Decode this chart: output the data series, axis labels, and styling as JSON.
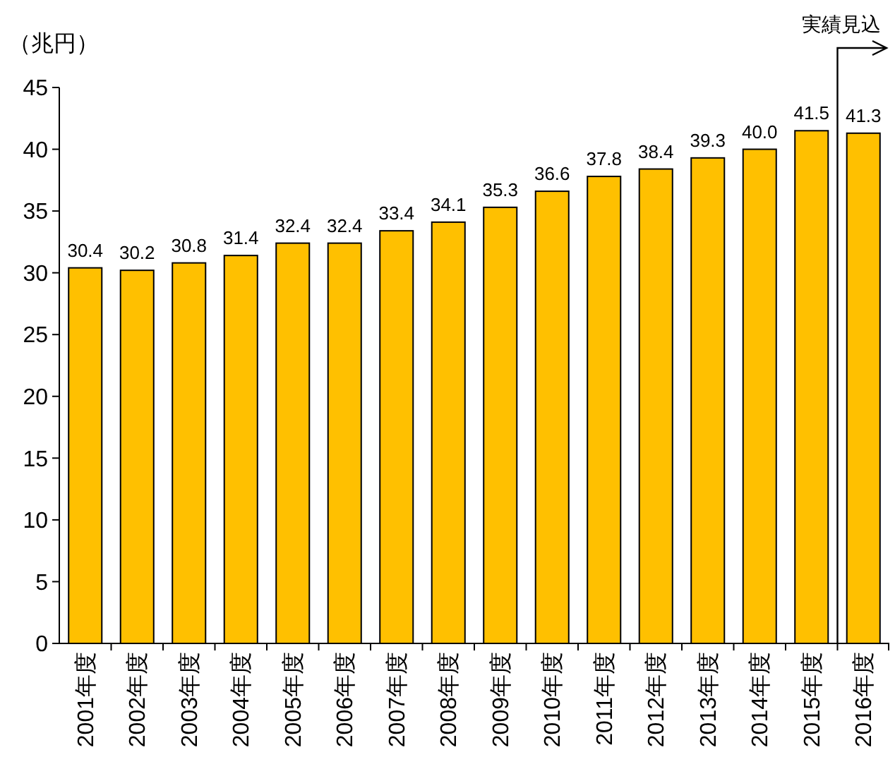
{
  "chart_data": {
    "type": "bar",
    "ylabel": "（兆円）",
    "categories": [
      "2001年度",
      "2002年度",
      "2003年度",
      "2004年度",
      "2005年度",
      "2006年度",
      "2007年度",
      "2008年度",
      "2009年度",
      "2010年度",
      "2011年度",
      "2012年度",
      "2013年度",
      "2014年度",
      "2015年度",
      "2016年度"
    ],
    "values": [
      30.4,
      30.2,
      30.8,
      31.4,
      32.4,
      32.4,
      33.4,
      34.1,
      35.3,
      36.6,
      37.8,
      38.4,
      39.3,
      40.0,
      41.5,
      41.3
    ],
    "value_labels": [
      "30.4",
      "30.2",
      "30.8",
      "31.4",
      "32.4",
      "32.4",
      "33.4",
      "34.1",
      "35.3",
      "36.6",
      "37.8",
      "38.4",
      "39.3",
      "40.0",
      "41.5",
      "41.3"
    ],
    "color": "#ffc000",
    "ylim": [
      0,
      45
    ],
    "yticks": [
      0,
      5,
      10,
      15,
      20,
      25,
      30,
      35,
      40,
      45
    ],
    "grid": false,
    "annotations": [
      "実績見込"
    ]
  }
}
